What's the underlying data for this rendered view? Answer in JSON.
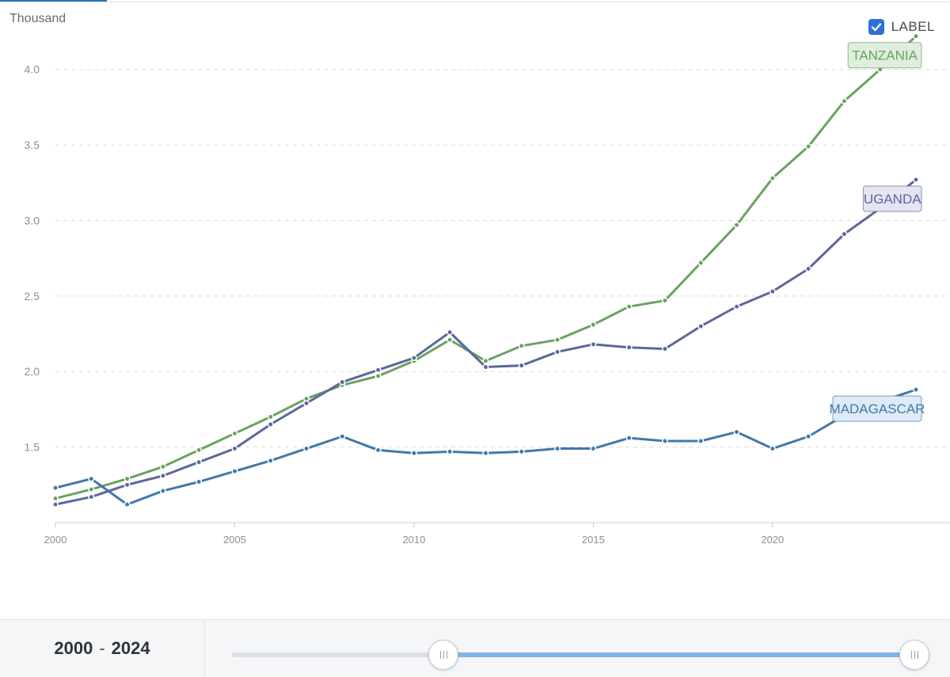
{
  "unit_label": "Thousand",
  "label_toggle": {
    "text": "LABEL",
    "checked": true
  },
  "range": {
    "start": "2000",
    "separator": "-",
    "end": "2024"
  },
  "chart_data": {
    "type": "line",
    "title": "",
    "xlabel": "",
    "ylabel": "Thousand",
    "xlim": [
      2000,
      2024
    ],
    "ylim": [
      1.0,
      4.25
    ],
    "yticks": [
      1.5,
      2.0,
      2.5,
      3.0,
      3.5,
      4.0
    ],
    "ytick_labels": [
      "1.5",
      "2.0",
      "2.5",
      "3.0",
      "3.5",
      "4.0"
    ],
    "xticks": [
      2000,
      2005,
      2010,
      2015,
      2020
    ],
    "xtick_labels": [
      "2000",
      "2005",
      "2010",
      "2015",
      "2020"
    ],
    "grid": true,
    "x": [
      2000,
      2001,
      2002,
      2003,
      2004,
      2005,
      2006,
      2007,
      2008,
      2009,
      2010,
      2011,
      2012,
      2013,
      2014,
      2015,
      2016,
      2017,
      2018,
      2019,
      2020,
      2021,
      2022,
      2023,
      2024
    ],
    "series": [
      {
        "name": "TANZANIA",
        "color": "#6aa261",
        "label_bg": "#dfeedd",
        "values": [
          1.16,
          1.22,
          1.29,
          1.37,
          1.48,
          1.59,
          1.7,
          1.82,
          1.91,
          1.97,
          2.07,
          2.21,
          2.07,
          2.17,
          2.21,
          2.31,
          2.43,
          2.47,
          2.72,
          2.97,
          3.28,
          3.49,
          3.79,
          4.0,
          4.22
        ]
      },
      {
        "name": "UGANDA",
        "color": "#5c6899",
        "label_bg": "#e4e4f2",
        "values": [
          1.12,
          1.17,
          1.25,
          1.31,
          1.4,
          1.49,
          1.65,
          1.79,
          1.93,
          2.01,
          2.09,
          2.26,
          2.03,
          2.04,
          2.13,
          2.18,
          2.16,
          2.15,
          2.3,
          2.43,
          2.53,
          2.68,
          2.91,
          3.08,
          3.27
        ]
      },
      {
        "name": "MADAGASCAR",
        "color": "#4178aa",
        "label_bg": "#deeaf6",
        "values": [
          1.23,
          1.29,
          1.12,
          1.21,
          1.27,
          1.34,
          1.41,
          1.49,
          1.57,
          1.48,
          1.46,
          1.47,
          1.46,
          1.47,
          1.49,
          1.49,
          1.56,
          1.54,
          1.54,
          1.6,
          1.49,
          1.57,
          1.71,
          1.8,
          1.88
        ]
      }
    ]
  }
}
